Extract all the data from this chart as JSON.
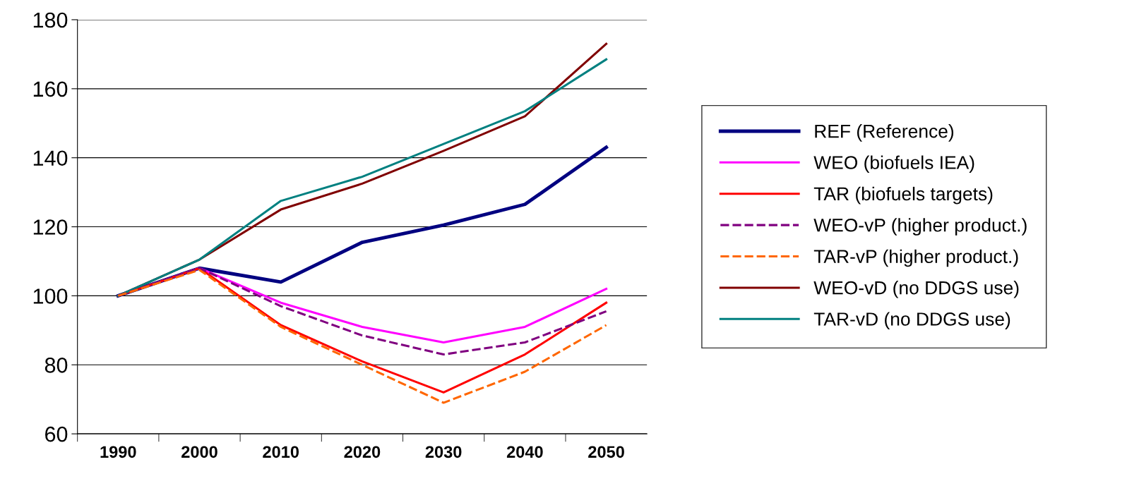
{
  "chart_data": {
    "type": "line",
    "categories": [
      "1990",
      "2000",
      "2010",
      "2020",
      "2030",
      "2040",
      "2050"
    ],
    "ylim": [
      60,
      180
    ],
    "yticks": [
      60,
      80,
      100,
      120,
      140,
      160,
      180
    ],
    "grid": "y",
    "legend": "right",
    "marker": "none",
    "series": [
      {
        "name": "REF (Reference)",
        "color": "#000080",
        "line_style": "solid",
        "values": [
          100,
          108,
          104,
          115.5,
          120.5,
          126.5,
          143
        ]
      },
      {
        "name": "WEO (biofuels IEA)",
        "color": "#ff00ff",
        "line_style": "solid",
        "values": [
          100,
          108,
          98,
          91,
          86.5,
          91,
          102
        ]
      },
      {
        "name": "TAR (biofuels targets)",
        "color": "#ff0000",
        "line_style": "solid",
        "values": [
          100,
          108,
          91.5,
          81,
          72,
          83,
          98
        ]
      },
      {
        "name": "WEO-vP (higher product.)",
        "color": "#800080",
        "line_style": "dashed",
        "values": [
          100,
          108,
          97,
          88.5,
          83,
          86.5,
          95.5
        ]
      },
      {
        "name": "TAR-vP (higher product.)",
        "color": "#ff6600",
        "line_style": "dashed",
        "values": [
          100,
          107.5,
          91,
          80,
          69,
          78,
          91.5
        ]
      },
      {
        "name": "WEO-vD (no DDGS use)",
        "color": "#800000",
        "line_style": "solid",
        "values": [
          100,
          110.5,
          125,
          132.5,
          142,
          152,
          173
        ]
      },
      {
        "name": "TAR-vD (no DDGS use)",
        "color": "#008080",
        "line_style": "solid",
        "values": [
          100,
          110.5,
          127.5,
          134.5,
          144,
          153.5,
          168.5
        ]
      }
    ]
  }
}
